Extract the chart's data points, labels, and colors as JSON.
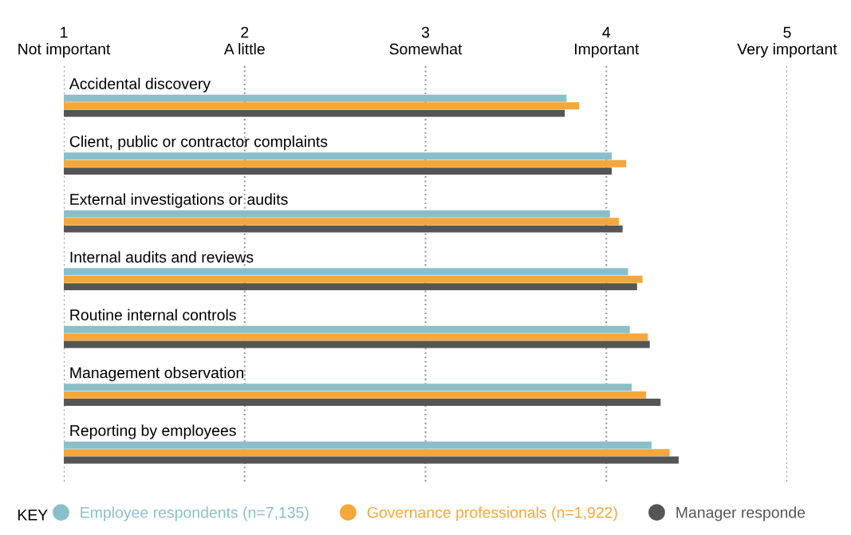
{
  "chart_data": {
    "type": "bar",
    "orientation": "horizontal",
    "legend_title": "KEY",
    "legend": "bottom",
    "grid": "x",
    "categories": [
      "Accidental discovery",
      "Client, public or contractor complaints",
      "External investigations or audits",
      "Internal audits and reviews",
      "Routine internal controls",
      "Management observation",
      "Reporting by employees"
    ],
    "xlim": [
      1,
      5
    ],
    "xticks": [
      {
        "value": 1,
        "label": "1\nNot important"
      },
      {
        "value": 2,
        "label": "2\nA little"
      },
      {
        "value": 3,
        "label": "3\nSomewhat"
      },
      {
        "value": 4,
        "label": "4\nImportant"
      },
      {
        "value": 5,
        "label": "5\nVery important"
      }
    ],
    "series": [
      {
        "name": "Employee respondents (n=7,135)",
        "color": "#89bfca",
        "values": [
          3.78,
          4.03,
          4.02,
          4.12,
          4.13,
          4.14,
          4.25
        ]
      },
      {
        "name": "Governance professionals (n=1,922)",
        "color": "#f5a73b",
        "values": [
          3.85,
          4.11,
          4.07,
          4.2,
          4.23,
          4.22,
          4.35
        ]
      },
      {
        "name": "Manager responde",
        "color": "#555555",
        "values": [
          3.77,
          4.03,
          4.09,
          4.17,
          4.24,
          4.3,
          4.4
        ]
      }
    ]
  }
}
